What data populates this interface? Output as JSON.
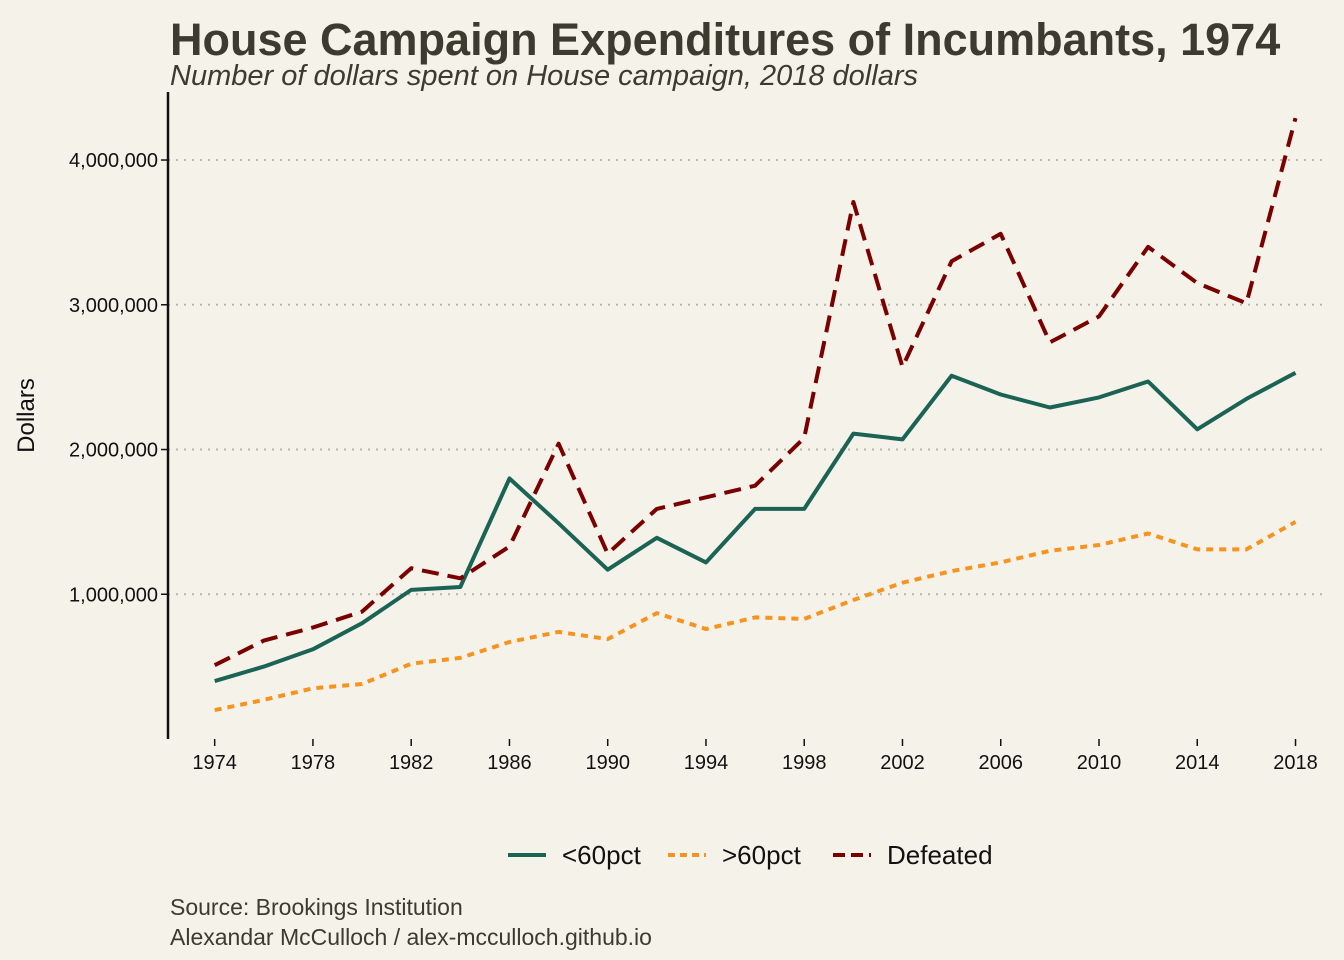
{
  "header": {
    "title": "House Campaign Expenditures of Incumbants, 1974",
    "subtitle": "Number of dollars spent on House campaign, 2018 dollars"
  },
  "caption": {
    "source": "Source: Brookings Institution",
    "author": "Alexandar McCulloch / alex-mcculloch.github.io"
  },
  "chart_data": {
    "type": "line",
    "title": "House Campaign Expenditures of Incumbants, 1974",
    "subtitle": "Number of dollars spent on House campaign, 2018 dollars",
    "xlabel": "",
    "ylabel": "Dollars",
    "x": [
      1974,
      1976,
      1978,
      1980,
      1982,
      1984,
      1986,
      1988,
      1990,
      1992,
      1994,
      1996,
      1998,
      2000,
      2002,
      2004,
      2006,
      2008,
      2010,
      2012,
      2014,
      2016,
      2018
    ],
    "x_ticks": [
      "1974",
      "1978",
      "1982",
      "1986",
      "1990",
      "1994",
      "1998",
      "2002",
      "2006",
      "2010",
      "2014",
      "2018"
    ],
    "y_ticks": [
      "1,000,000",
      "2,000,000",
      "3,000,000",
      "4,000,000"
    ],
    "ylim": [
      0,
      4470000
    ],
    "xlim": [
      1972.1,
      2019.2
    ],
    "grid": "horizontal dotted",
    "legend_position": "bottom",
    "series": [
      {
        "name": "<60pct",
        "color": "#1b6354",
        "dash": "solid",
        "values": [
          400000,
          500000,
          620000,
          800000,
          1030000,
          1050000,
          1800000,
          1490000,
          1170000,
          1390000,
          1220000,
          1590000,
          1590000,
          2110000,
          2070000,
          2510000,
          2380000,
          2290000,
          2360000,
          2470000,
          2140000,
          2350000,
          2530000
        ]
      },
      {
        "name": ">60pct",
        "color": "#f7931e",
        "dash": "dotted",
        "values": [
          200000,
          270000,
          350000,
          380000,
          520000,
          560000,
          670000,
          740000,
          690000,
          870000,
          760000,
          840000,
          830000,
          960000,
          1080000,
          1160000,
          1220000,
          1300000,
          1340000,
          1420000,
          1310000,
          1310000,
          1500000
        ]
      },
      {
        "name": "Defeated",
        "color": "#7a0000",
        "dash": "dashed",
        "values": [
          510000,
          680000,
          770000,
          880000,
          1180000,
          1110000,
          1330000,
          2040000,
          1280000,
          1590000,
          1670000,
          1750000,
          2080000,
          3710000,
          2570000,
          3300000,
          3490000,
          2740000,
          2920000,
          3400000,
          3150000,
          3010000,
          4290000
        ]
      }
    ]
  }
}
